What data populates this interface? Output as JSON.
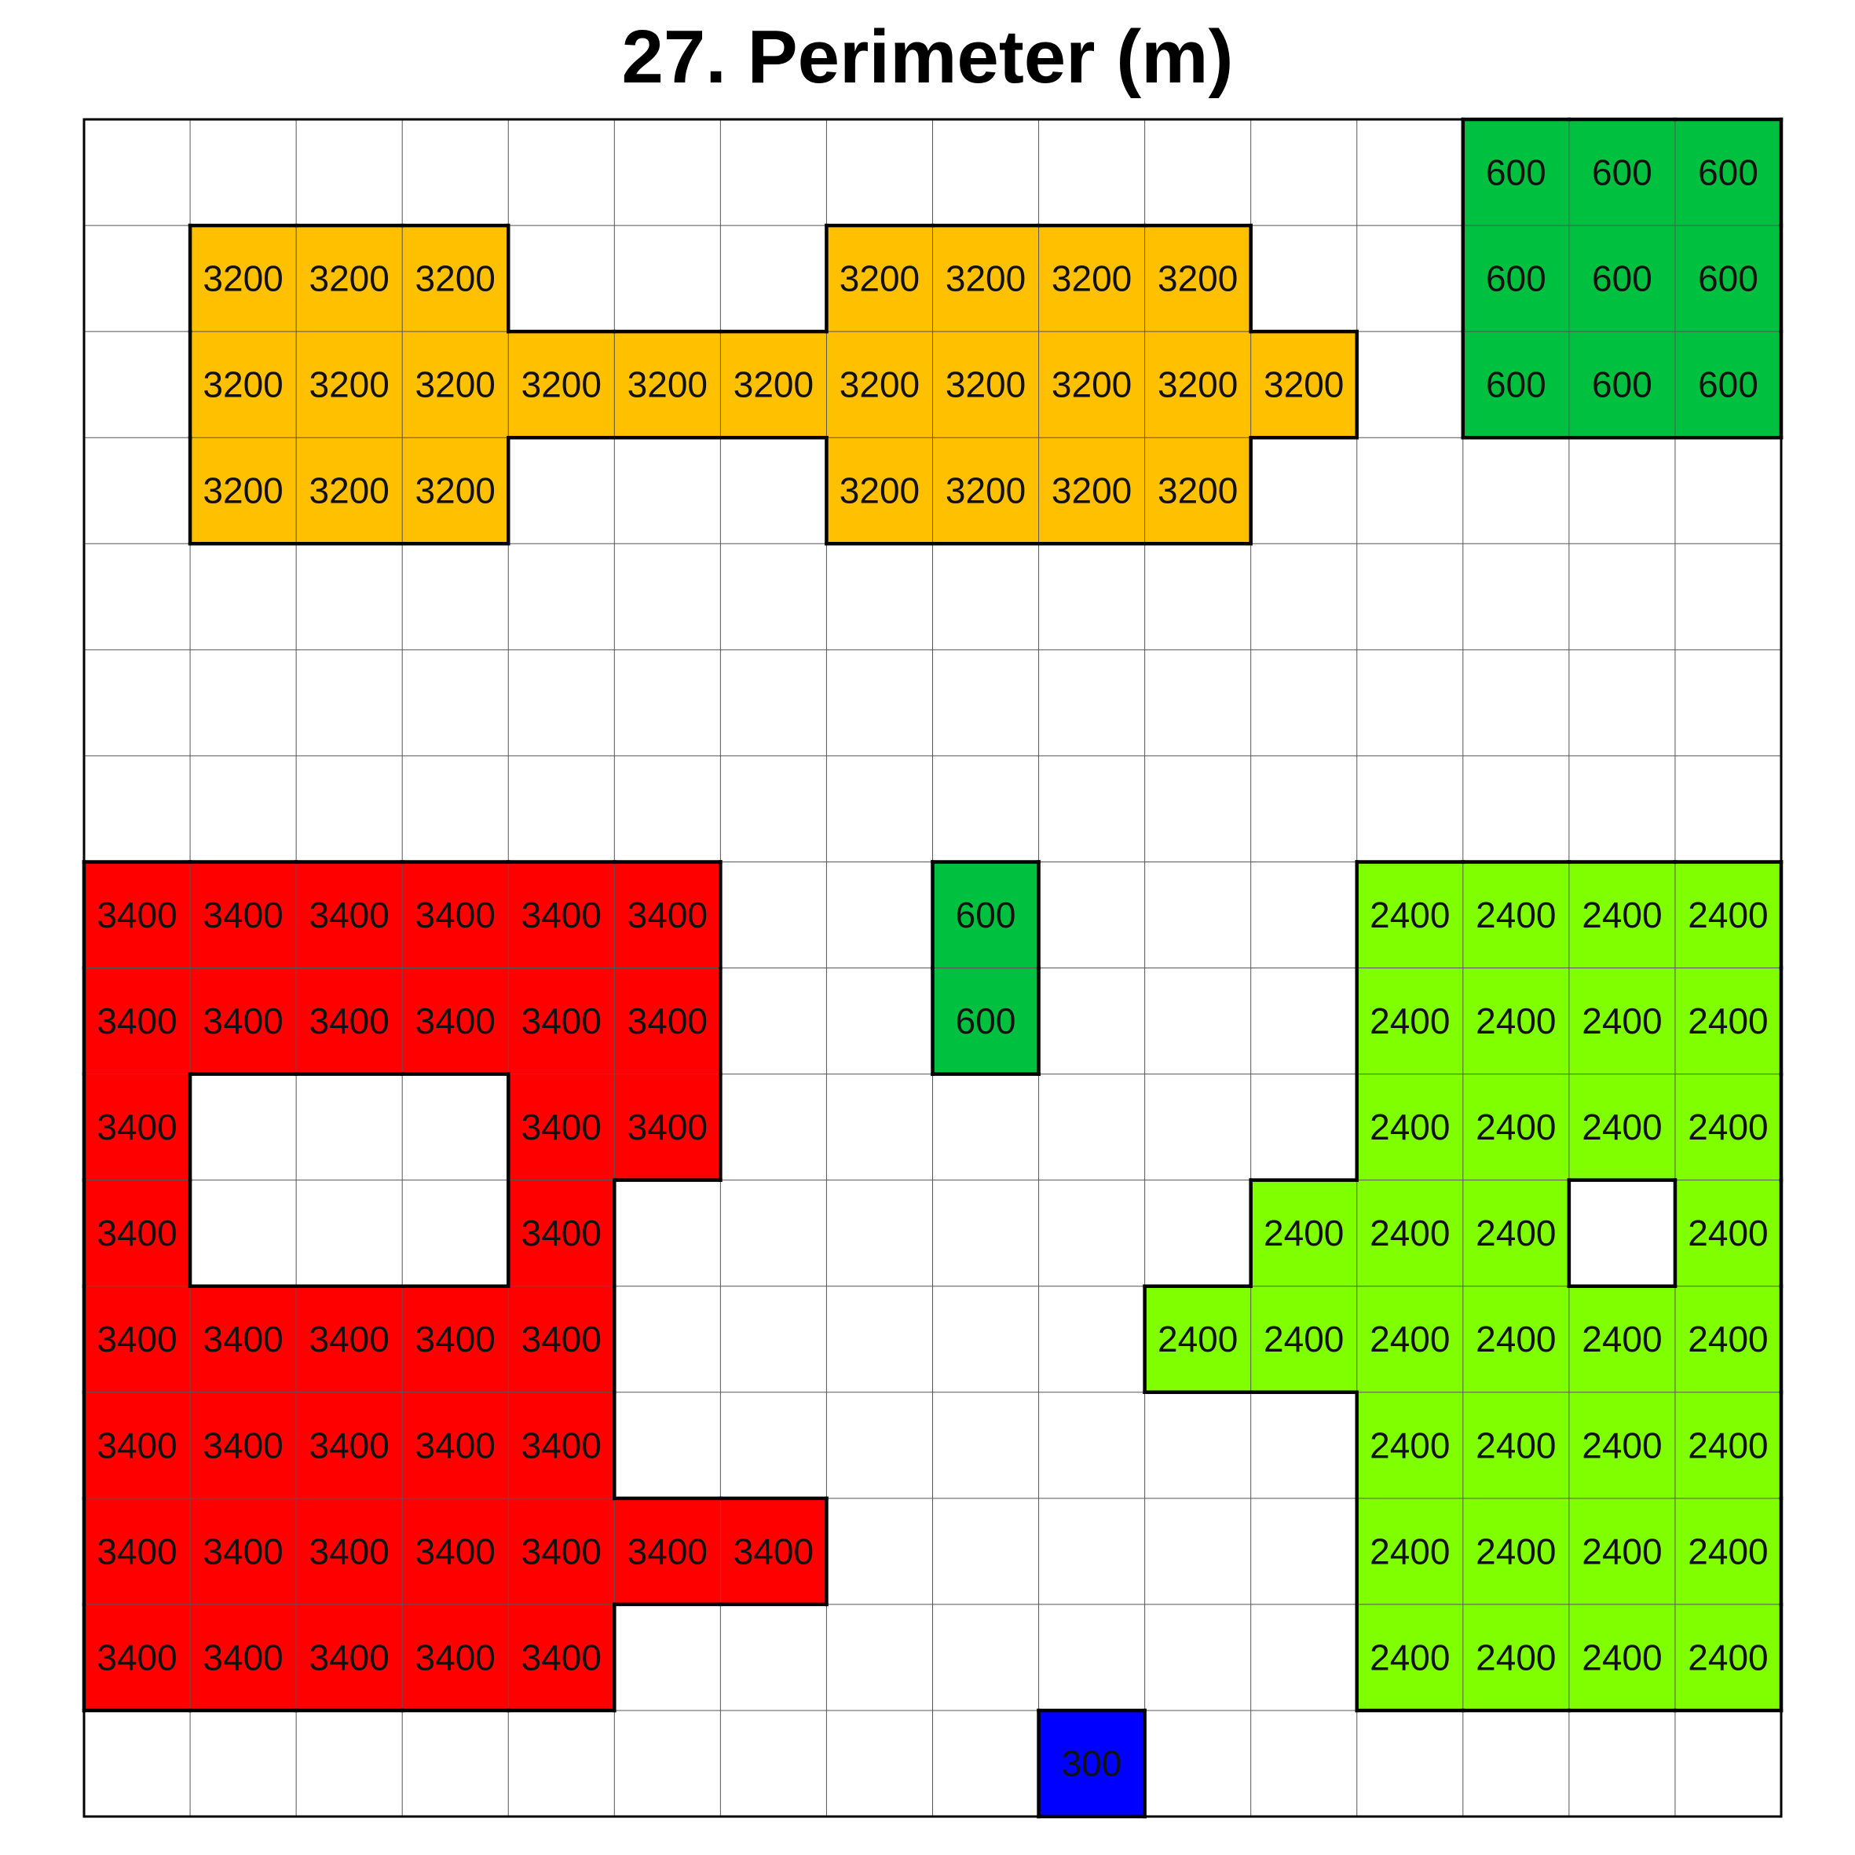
{
  "title": "27. Perimeter (m)",
  "grid": {
    "rows": 16,
    "cols": 16
  },
  "regions": [
    {
      "name": "region-yellow-3200",
      "color": "#FFC000",
      "value": "3200",
      "cells": [
        [
          1,
          1
        ],
        [
          1,
          2
        ],
        [
          1,
          3
        ],
        [
          1,
          7
        ],
        [
          1,
          8
        ],
        [
          1,
          9
        ],
        [
          1,
          10
        ],
        [
          2,
          1
        ],
        [
          2,
          2
        ],
        [
          2,
          3
        ],
        [
          2,
          4
        ],
        [
          2,
          5
        ],
        [
          2,
          6
        ],
        [
          2,
          7
        ],
        [
          2,
          8
        ],
        [
          2,
          9
        ],
        [
          2,
          10
        ],
        [
          2,
          11
        ],
        [
          3,
          1
        ],
        [
          3,
          2
        ],
        [
          3,
          3
        ],
        [
          3,
          7
        ],
        [
          3,
          8
        ],
        [
          3,
          9
        ],
        [
          3,
          10
        ]
      ]
    },
    {
      "name": "region-darkgreen-600-top",
      "color": "#00C040",
      "value": "600",
      "cells": [
        [
          0,
          13
        ],
        [
          0,
          14
        ],
        [
          0,
          15
        ],
        [
          1,
          13
        ],
        [
          1,
          14
        ],
        [
          1,
          15
        ],
        [
          2,
          13
        ],
        [
          2,
          14
        ],
        [
          2,
          15
        ]
      ]
    },
    {
      "name": "region-darkgreen-600-middle",
      "color": "#00C040",
      "value": "600",
      "cells": [
        [
          7,
          8
        ],
        [
          8,
          8
        ]
      ]
    },
    {
      "name": "region-red-3400",
      "color": "#FF0000",
      "value": "3400",
      "cells": [
        [
          7,
          0
        ],
        [
          7,
          1
        ],
        [
          7,
          2
        ],
        [
          7,
          3
        ],
        [
          7,
          4
        ],
        [
          7,
          5
        ],
        [
          8,
          0
        ],
        [
          8,
          1
        ],
        [
          8,
          2
        ],
        [
          8,
          3
        ],
        [
          8,
          4
        ],
        [
          8,
          5
        ],
        [
          9,
          0
        ],
        [
          9,
          4
        ],
        [
          9,
          5
        ],
        [
          10,
          0
        ],
        [
          10,
          4
        ],
        [
          11,
          0
        ],
        [
          11,
          1
        ],
        [
          11,
          2
        ],
        [
          11,
          3
        ],
        [
          11,
          4
        ],
        [
          12,
          0
        ],
        [
          12,
          1
        ],
        [
          12,
          2
        ],
        [
          12,
          3
        ],
        [
          12,
          4
        ],
        [
          13,
          0
        ],
        [
          13,
          1
        ],
        [
          13,
          2
        ],
        [
          13,
          3
        ],
        [
          13,
          4
        ],
        [
          13,
          5
        ],
        [
          13,
          6
        ],
        [
          14,
          0
        ],
        [
          14,
          1
        ],
        [
          14,
          2
        ],
        [
          14,
          3
        ],
        [
          14,
          4
        ]
      ]
    },
    {
      "name": "region-lime-2400",
      "color": "#80FF00",
      "value": "2400",
      "cells": [
        [
          7,
          12
        ],
        [
          7,
          13
        ],
        [
          7,
          14
        ],
        [
          7,
          15
        ],
        [
          8,
          12
        ],
        [
          8,
          13
        ],
        [
          8,
          14
        ],
        [
          8,
          15
        ],
        [
          9,
          12
        ],
        [
          9,
          13
        ],
        [
          9,
          14
        ],
        [
          9,
          15
        ],
        [
          10,
          11
        ],
        [
          10,
          12
        ],
        [
          10,
          13
        ],
        [
          10,
          15
        ],
        [
          11,
          10
        ],
        [
          11,
          11
        ],
        [
          11,
          12
        ],
        [
          11,
          13
        ],
        [
          11,
          14
        ],
        [
          11,
          15
        ],
        [
          12,
          12
        ],
        [
          12,
          13
        ],
        [
          12,
          14
        ],
        [
          12,
          15
        ],
        [
          13,
          12
        ],
        [
          13,
          13
        ],
        [
          13,
          14
        ],
        [
          13,
          15
        ],
        [
          14,
          12
        ],
        [
          14,
          13
        ],
        [
          14,
          14
        ],
        [
          14,
          15
        ]
      ]
    },
    {
      "name": "region-blue-300",
      "color": "#0000FF",
      "value": "300",
      "cells": [
        [
          15,
          9
        ]
      ]
    }
  ]
}
